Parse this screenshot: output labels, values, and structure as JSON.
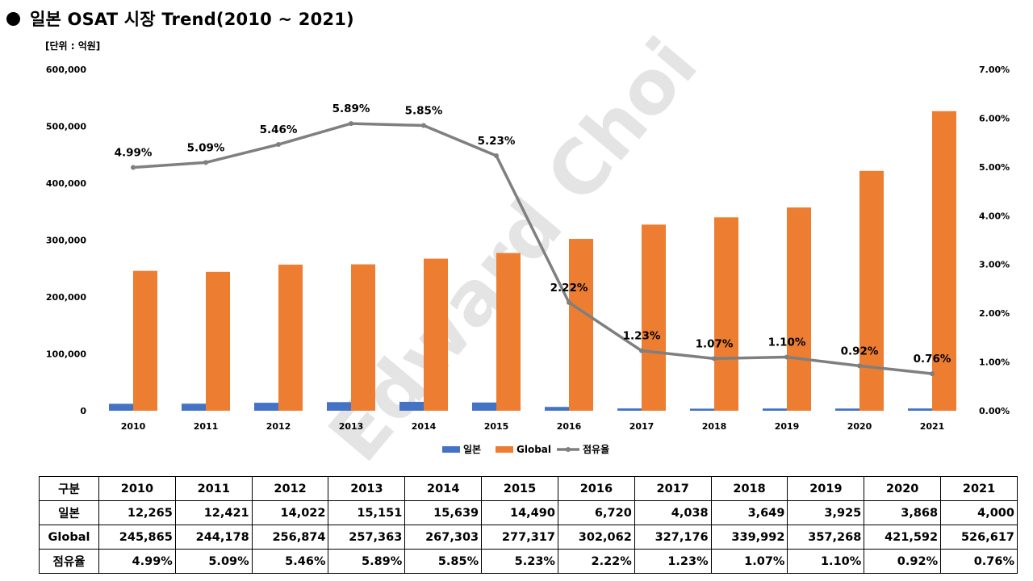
{
  "title": "일본 OSAT 시장 Trend(2010  ~ 2021)",
  "unit": "[단위 : 억원]",
  "colors": {
    "japan": "#4472C4",
    "global": "#ED7D31",
    "share": "#7F7F7F"
  },
  "chart_data": {
    "type": "bar+line",
    "categories": [
      "2010",
      "2011",
      "2012",
      "2013",
      "2014",
      "2015",
      "2016",
      "2017",
      "2018",
      "2019",
      "2020",
      "2021"
    ],
    "series": [
      {
        "name": "일본",
        "type": "bar",
        "axis": "left",
        "values": [
          12265,
          12421,
          14022,
          15151,
          15639,
          14490,
          6720,
          4038,
          3649,
          3925,
          3868,
          4000
        ]
      },
      {
        "name": "Global",
        "type": "bar",
        "axis": "left",
        "values": [
          245865,
          244178,
          256874,
          257363,
          267303,
          277317,
          302062,
          327176,
          339992,
          357268,
          421592,
          526617
        ]
      },
      {
        "name": "점유율",
        "type": "line",
        "axis": "right",
        "values": [
          4.99,
          5.09,
          5.46,
          5.89,
          5.85,
          5.23,
          2.22,
          1.23,
          1.07,
          1.1,
          0.92,
          0.76
        ],
        "labels": [
          "4.99%",
          "5.09%",
          "5.46%",
          "5.89%",
          "5.85%",
          "5.23%",
          "2.22%",
          "1.23%",
          "1.07%",
          "1.10%",
          "0.92%",
          "0.76%"
        ]
      }
    ],
    "y_left": {
      "min": 0,
      "max": 600000,
      "ticks": [
        "0",
        "100,000",
        "200,000",
        "300,000",
        "400,000",
        "500,000",
        "600,000"
      ]
    },
    "y_right": {
      "min": 0,
      "max": 7,
      "ticks": [
        "0.00%",
        "1.00%",
        "2.00%",
        "3.00%",
        "4.00%",
        "5.00%",
        "6.00%",
        "7.00%"
      ]
    },
    "grid": false,
    "legend_position": "bottom",
    "watermark": "Edward Choi"
  },
  "table": {
    "header": [
      "구분",
      "2010",
      "2011",
      "2012",
      "2013",
      "2014",
      "2015",
      "2016",
      "2017",
      "2018",
      "2019",
      "2020",
      "2021"
    ],
    "rows": [
      {
        "label": "일본",
        "cells": [
          "12,265",
          "12,421",
          "14,022",
          "15,151",
          "15,639",
          "14,490",
          "6,720",
          "4,038",
          "3,649",
          "3,925",
          "3,868",
          "4,000"
        ]
      },
      {
        "label": "Global",
        "cells": [
          "245,865",
          "244,178",
          "256,874",
          "257,363",
          "267,303",
          "277,317",
          "302,062",
          "327,176",
          "339,992",
          "357,268",
          "421,592",
          "526,617"
        ]
      },
      {
        "label": "점유율",
        "cells": [
          "4.99%",
          "5.09%",
          "5.46%",
          "5.89%",
          "5.85%",
          "5.23%",
          "2.22%",
          "1.23%",
          "1.07%",
          "1.10%",
          "0.92%",
          "0.76%"
        ]
      }
    ]
  }
}
